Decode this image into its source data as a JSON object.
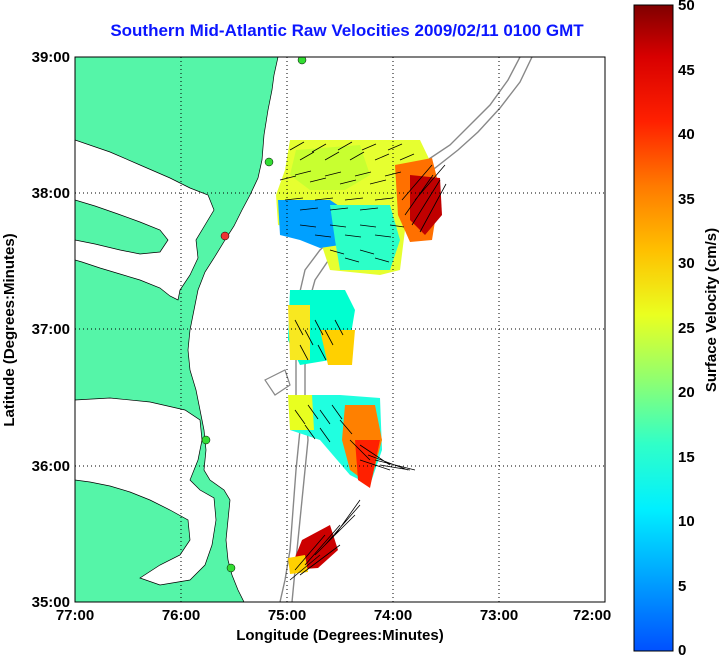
{
  "title": "Southern Mid-Atlantic Raw Velocities 2009/02/11 0100 GMT",
  "axes": {
    "xlabel": "Longitude (Degrees:Minutes)",
    "ylabel": "Latitude (Degrees:Minutes)",
    "xticks": [
      "77:00",
      "76:00",
      "75:00",
      "74:00",
      "73:00",
      "72:00"
    ],
    "yticks": [
      "39:00",
      "38:00",
      "37:00",
      "36:00",
      "35:00"
    ]
  },
  "colorbar": {
    "label": "Surface Velocity (cm/s)",
    "min": 0,
    "max": 50,
    "ticks": [
      "50",
      "45",
      "40",
      "35",
      "30",
      "25",
      "20",
      "15",
      "10",
      "5",
      "0"
    ]
  },
  "colors": {
    "land": "#55f5a8",
    "title": "#0b16ff"
  }
}
